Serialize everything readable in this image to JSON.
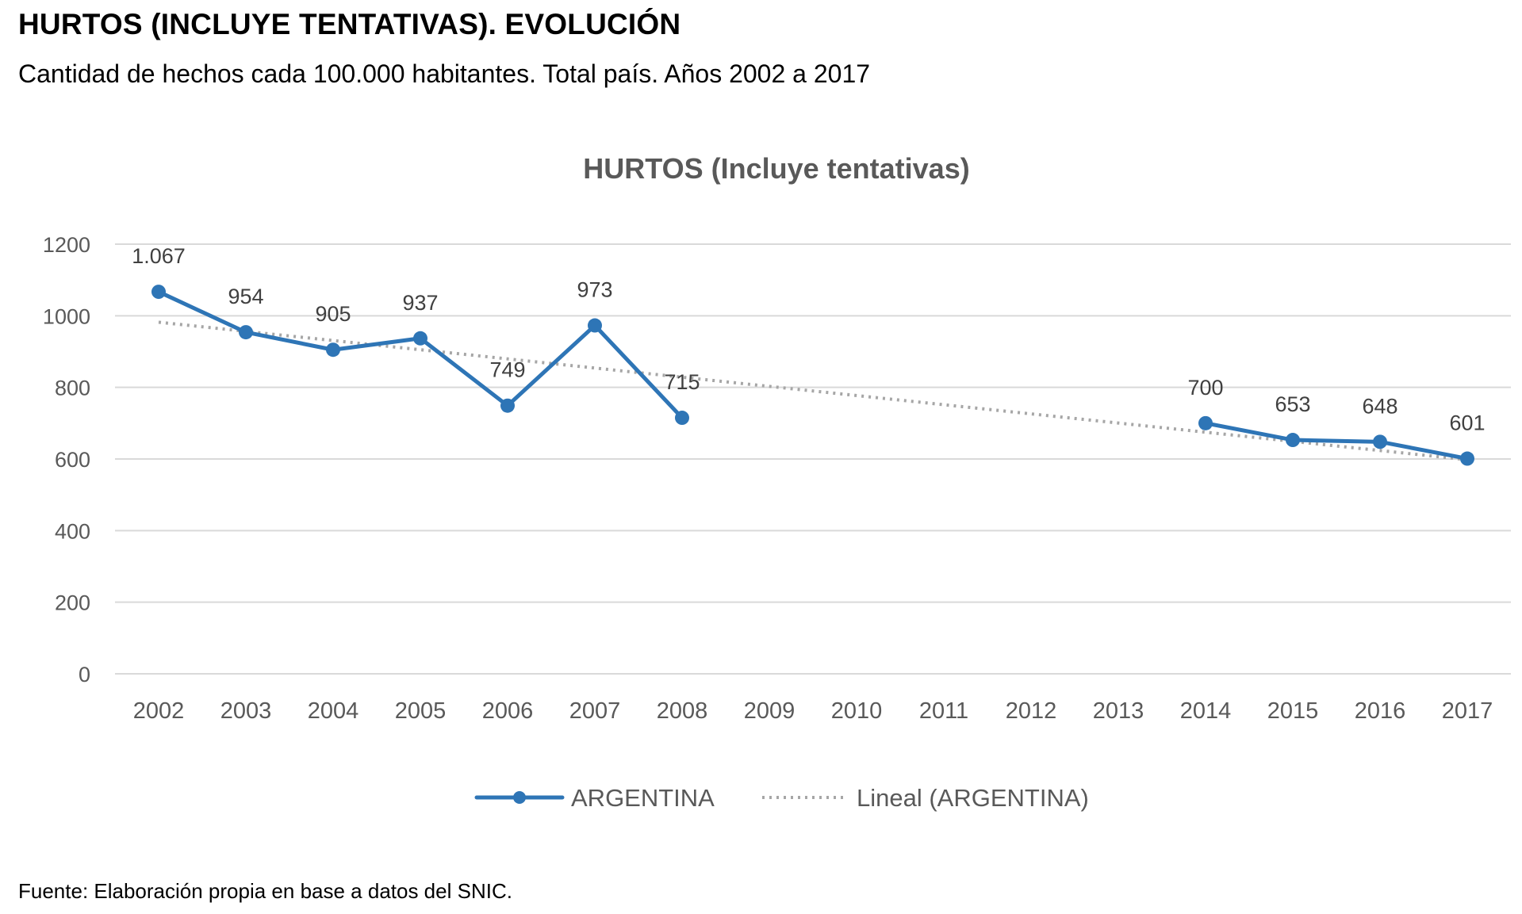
{
  "header": {
    "title": "HURTOS (INCLUYE TENTATIVAS). EVOLUCIÓN",
    "subtitle": "Cantidad de hechos cada 100.000 habitantes. Total país. Años 2002 a 2017"
  },
  "footer": {
    "source": "Fuente: Elaboración propia en base a datos del SNIC."
  },
  "chart_data": {
    "type": "line",
    "title": "HURTOS (Incluye tentativas)",
    "xlabel": "",
    "ylabel": "",
    "categories": [
      "2002",
      "2003",
      "2004",
      "2005",
      "2006",
      "2007",
      "2008",
      "2009",
      "2010",
      "2011",
      "2012",
      "2013",
      "2014",
      "2015",
      "2016",
      "2017"
    ],
    "ylim": [
      0,
      1200
    ],
    "yticks": [
      0,
      200,
      400,
      600,
      800,
      1000,
      1200
    ],
    "grid": true,
    "legend_position": "bottom",
    "series": [
      {
        "name": "ARGENTINA",
        "color": "#2E75B6",
        "marker": "circle",
        "values": [
          1067,
          954,
          905,
          937,
          749,
          973,
          715,
          null,
          null,
          null,
          null,
          null,
          700,
          653,
          648,
          601
        ],
        "data_labels": [
          "1.067",
          "954",
          "905",
          "937",
          "749",
          "973",
          "715",
          "",
          "",
          "",
          "",
          "",
          "700",
          "653",
          "648",
          "601"
        ]
      }
    ],
    "trendline": {
      "name": "Lineal (ARGENTINA)",
      "color": "#A6A6A6",
      "style": "dotted",
      "start": 982,
      "end": 598
    }
  }
}
